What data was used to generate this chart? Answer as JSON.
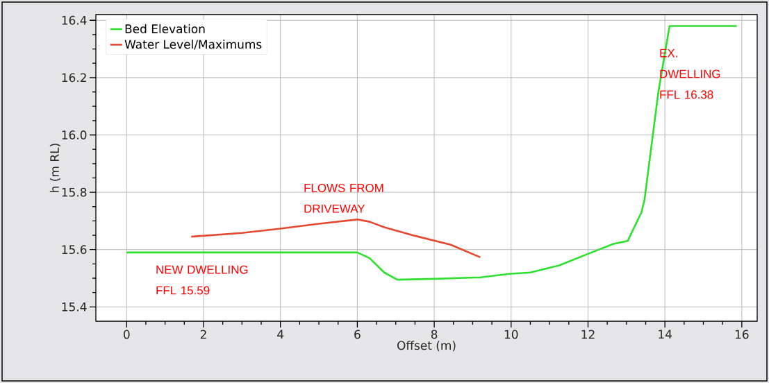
{
  "chart_data": {
    "type": "line",
    "xlabel": "Offset (m)",
    "ylabel": "h (m RL)",
    "xlim": [
      -0.8,
      16.4
    ],
    "ylim": [
      15.35,
      16.42
    ],
    "xticks": [
      0,
      2,
      4,
      6,
      8,
      10,
      12,
      14,
      16
    ],
    "yticks": [
      15.4,
      15.6,
      15.8,
      {
        "value": 16.0,
        "label": "16.0"
      },
      16.2,
      16.4
    ],
    "grid": true,
    "legend": "top left",
    "line_style": "solid",
    "marker": "none",
    "series": [
      {
        "name": "Bed Elevation",
        "color": "#2ee02e",
        "x": [
          0,
          6.0,
          6.32,
          6.7,
          7.04,
          8.0,
          9.2,
          9.95,
          10.5,
          11.25,
          12.0,
          12.66,
          13.03,
          13.39,
          13.47,
          13.83,
          14.12,
          15.87
        ],
        "values": [
          15.59,
          15.59,
          15.57,
          15.52,
          15.495,
          15.498,
          15.503,
          15.515,
          15.52,
          15.545,
          15.585,
          15.62,
          15.63,
          15.73,
          15.775,
          16.15,
          16.38,
          16.38
        ]
      },
      {
        "name": "Water Level/Maximums",
        "color": "#e5482e",
        "x": [
          1.68,
          3.0,
          4.0,
          5.0,
          6.0,
          6.32,
          6.7,
          7.5,
          8.43,
          9.2
        ],
        "values": [
          15.645,
          15.658,
          15.673,
          15.69,
          15.705,
          15.697,
          15.678,
          15.648,
          15.617,
          15.573
        ]
      }
    ],
    "annotations": [
      "NEW DWELLING FFL 15.59",
      "FLOWS FROM DRIVEWAY",
      "EX. DWELLING FFL 16.38"
    ]
  }
}
